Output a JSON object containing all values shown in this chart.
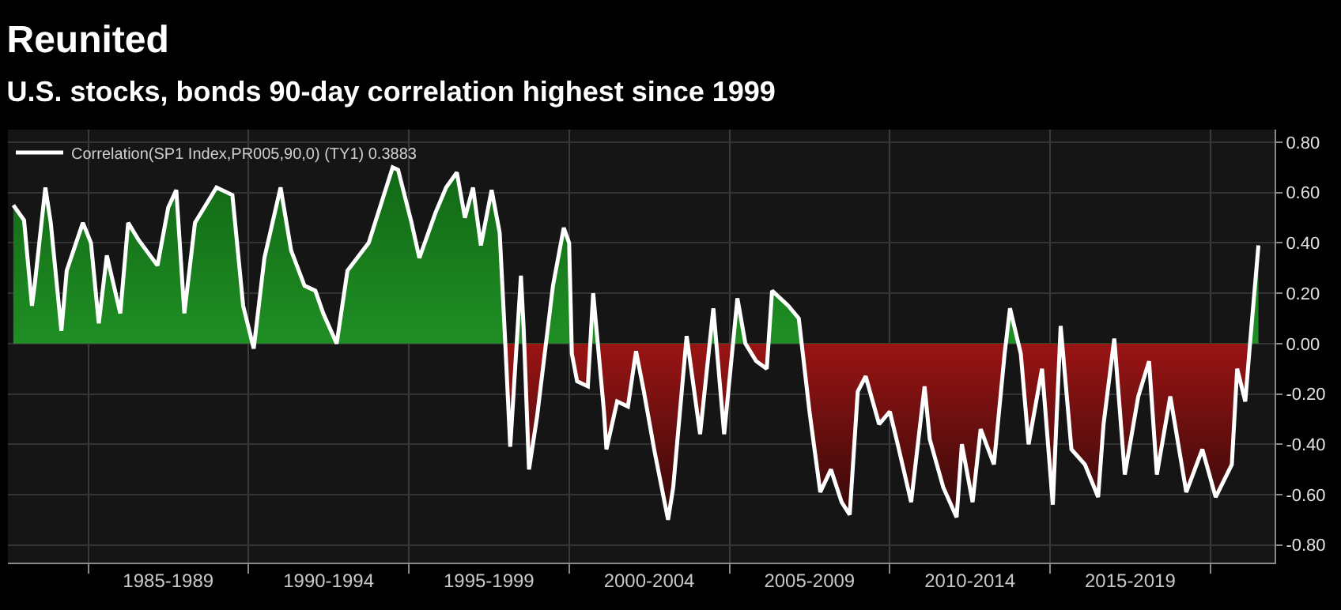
{
  "chart_data": {
    "type": "area",
    "title": "Reunited",
    "subtitle": "U.S. stocks, bonds 90-day correlation highest since 1999",
    "x": [
      "1982-09",
      "1983-01",
      "1983-04",
      "1983-05",
      "1983-09",
      "1983-11",
      "1984-03",
      "1984-05",
      "1984-11",
      "1985-02",
      "1985-05",
      "1985-08",
      "1986-01",
      "1986-04",
      "1986-08",
      "1987-03",
      "1987-07",
      "1987-10",
      "1988-01",
      "1988-05",
      "1989-01",
      "1989-07",
      "1989-11",
      "1990-03",
      "1990-07",
      "1991-01",
      "1991-05",
      "1991-10",
      "1992-02",
      "1992-05",
      "1992-10",
      "1993-02",
      "1993-10",
      "1994-07",
      "1994-09",
      "1995-02",
      "1995-05",
      "1995-11",
      "1996-03",
      "1996-07",
      "1996-10",
      "1997-01",
      "1997-04",
      "1997-08",
      "1997-11",
      "1998-01",
      "1998-03",
      "1998-07",
      "1998-08",
      "1998-10",
      "1999-01",
      "1999-07",
      "1999-11",
      "2000-01",
      "2000-02",
      "2000-04",
      "2000-08",
      "2000-10",
      "2001-02",
      "2001-03",
      "2001-07",
      "2001-11",
      "2002-02",
      "2002-05",
      "2002-09",
      "2003-02",
      "2003-04",
      "2003-09",
      "2004-02",
      "2004-07",
      "2004-11",
      "2005-04",
      "2005-07",
      "2005-11",
      "2006-03",
      "2006-05",
      "2006-11",
      "2007-03",
      "2007-07",
      "2007-11",
      "2008-03",
      "2008-07",
      "2008-10",
      "2009-01",
      "2009-04",
      "2009-09",
      "2010-01",
      "2010-04",
      "2010-09",
      "2011-02",
      "2011-04",
      "2011-09",
      "2012-02",
      "2012-04",
      "2012-08",
      "2012-11",
      "2013-04",
      "2013-08",
      "2013-10",
      "2014-02",
      "2014-05",
      "2014-10",
      "2015-02",
      "2015-05",
      "2015-09",
      "2016-02",
      "2016-07",
      "2016-09",
      "2017-01",
      "2017-05",
      "2017-10",
      "2018-02",
      "2018-05",
      "2018-10",
      "2019-04",
      "2019-10",
      "2020-03",
      "2020-09",
      "2020-11",
      "2021-02",
      "2021-04",
      "2021-07"
    ],
    "series": [
      {
        "name": "Correlation(SP1 Index,PR005,90,0) (TY1) 0.3883",
        "color": "#ffffff",
        "values": [
          0.55,
          0.49,
          0.15,
          0.23,
          0.62,
          0.48,
          0.05,
          0.29,
          0.48,
          0.4,
          0.08,
          0.35,
          0.12,
          0.48,
          0.41,
          0.31,
          0.54,
          0.61,
          0.12,
          0.48,
          0.62,
          0.59,
          0.15,
          -0.02,
          0.34,
          0.62,
          0.37,
          0.23,
          0.21,
          0.12,
          0.0,
          0.29,
          0.4,
          0.7,
          0.69,
          0.48,
          0.34,
          0.52,
          0.62,
          0.68,
          0.5,
          0.62,
          0.39,
          0.61,
          0.44,
          0.02,
          -0.41,
          0.27,
          0.06,
          -0.5,
          -0.29,
          0.23,
          0.46,
          0.4,
          -0.04,
          -0.15,
          -0.17,
          0.2,
          -0.27,
          -0.42,
          -0.23,
          -0.25,
          -0.03,
          -0.19,
          -0.43,
          -0.7,
          -0.57,
          0.03,
          -0.36,
          0.14,
          -0.36,
          0.18,
          0.0,
          -0.07,
          -0.1,
          0.21,
          0.15,
          0.1,
          -0.27,
          -0.59,
          -0.5,
          -0.63,
          -0.68,
          -0.19,
          -0.13,
          -0.32,
          -0.27,
          -0.4,
          -0.63,
          -0.17,
          -0.38,
          -0.57,
          -0.69,
          -0.4,
          -0.63,
          -0.34,
          -0.48,
          -0.04,
          0.14,
          -0.04,
          -0.4,
          -0.1,
          -0.64,
          0.07,
          -0.42,
          -0.48,
          -0.61,
          -0.32,
          0.02,
          -0.52,
          -0.21,
          -0.07,
          -0.52,
          -0.21,
          -0.59,
          -0.42,
          -0.61,
          -0.48,
          -0.1,
          -0.23,
          0.02,
          0.39
        ]
      }
    ],
    "xlim": [
      "1982-07",
      "2022-01"
    ],
    "xticks": [
      {
        "value": "1985-01",
        "label": null
      },
      {
        "value": "1987-07",
        "label": "1985-1989"
      },
      {
        "value": "1990-01",
        "label": null
      },
      {
        "value": "1992-07",
        "label": "1990-1994"
      },
      {
        "value": "1995-01",
        "label": null
      },
      {
        "value": "1997-07",
        "label": "1995-1999"
      },
      {
        "value": "2000-01",
        "label": null
      },
      {
        "value": "2002-07",
        "label": "2000-2004"
      },
      {
        "value": "2005-01",
        "label": null
      },
      {
        "value": "2007-07",
        "label": "2005-2009"
      },
      {
        "value": "2010-01",
        "label": null
      },
      {
        "value": "2012-07",
        "label": "2010-2014"
      },
      {
        "value": "2015-01",
        "label": null
      },
      {
        "value": "2017-07",
        "label": "2015-2019"
      },
      {
        "value": "2020-01",
        "label": null
      }
    ],
    "ylim": [
      -0.87,
      0.85
    ],
    "yticks": [
      {
        "value": -0.8,
        "label": "-0.80"
      },
      {
        "value": -0.6,
        "label": "-0.60"
      },
      {
        "value": -0.4,
        "label": "-0.40"
      },
      {
        "value": -0.2,
        "label": "-0.20"
      },
      {
        "value": 0,
        "label": "0.00"
      },
      {
        "value": 0.2,
        "label": "0.20"
      },
      {
        "value": 0.4,
        "label": "0.40"
      },
      {
        "value": 0.6,
        "label": "0.60"
      },
      {
        "value": 0.8,
        "label": "0.80"
      }
    ],
    "grid": true,
    "legend": "top left"
  }
}
